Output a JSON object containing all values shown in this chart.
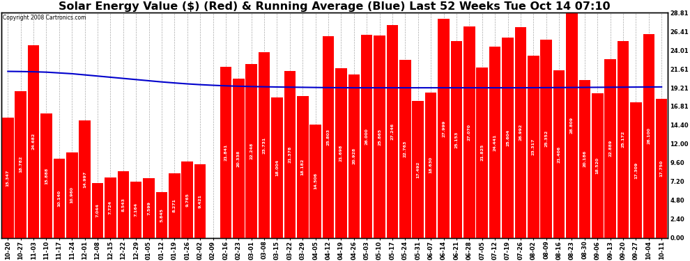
{
  "title": "Solar Energy Value ($) (Red) & Running Average (Blue) Last 52 Weeks Tue Oct 14 07:10",
  "copyright": "Copyright 2008 Cartronics.com",
  "ylabel_right_values": [
    28.81,
    26.41,
    24.01,
    21.61,
    19.21,
    16.81,
    14.4,
    12.0,
    9.6,
    7.2,
    4.8,
    2.4,
    0.0
  ],
  "bar_color": "#ff0000",
  "line_color": "#0000cc",
  "background_color": "#ffffff",
  "grid_color": "#aaaaaa",
  "x_labels": [
    "10-20",
    "10-27",
    "11-03",
    "11-10",
    "11-17",
    "11-24",
    "12-01",
    "12-08",
    "12-15",
    "12-22",
    "12-29",
    "01-05",
    "01-12",
    "01-19",
    "01-26",
    "02-02",
    "02-09",
    "02-16",
    "02-23",
    "03-01",
    "03-08",
    "03-15",
    "03-22",
    "03-29",
    "04-05",
    "04-12",
    "04-19",
    "04-26",
    "05-03",
    "05-10",
    "05-17",
    "05-24",
    "05-31",
    "06-07",
    "06-14",
    "06-21",
    "06-28",
    "07-05",
    "07-12",
    "07-19",
    "07-26",
    "08-02",
    "08-09",
    "08-16",
    "08-23",
    "08-30",
    "09-06",
    "09-13",
    "09-20",
    "09-27",
    "10-04",
    "10-11"
  ],
  "bar_values": [
    15.347,
    18.782,
    24.682,
    15.888,
    10.14,
    10.96,
    14.997,
    7.044,
    7.724,
    8.543,
    7.164,
    7.599,
    5.845,
    8.271,
    9.765,
    9.421,
    0.0,
    21.841,
    20.338,
    22.248,
    23.731,
    18.004,
    21.378,
    18.182,
    14.506,
    25.803,
    21.698,
    20.928,
    26.0,
    25.865,
    27.246,
    22.763,
    17.492,
    18.63,
    27.999,
    25.153,
    27.07,
    21.825,
    24.441,
    25.604,
    26.992,
    23.317,
    25.352,
    21.406,
    28.809,
    20.186,
    18.52,
    22.889,
    25.172,
    17.309,
    26.1,
    17.75
  ],
  "running_avg_y": [
    21.3,
    21.28,
    21.25,
    21.2,
    21.1,
    21.0,
    20.85,
    20.7,
    20.55,
    20.4,
    20.25,
    20.1,
    19.95,
    19.82,
    19.7,
    19.6,
    19.52,
    19.45,
    19.4,
    19.36,
    19.33,
    19.3,
    19.28,
    19.26,
    19.24,
    19.22,
    19.21,
    19.2,
    19.2,
    19.2,
    19.2,
    19.2,
    19.2,
    19.2,
    19.2,
    19.2,
    19.2,
    19.2,
    19.2,
    19.2,
    19.2,
    19.21,
    19.22,
    19.23,
    19.24,
    19.25,
    19.26,
    19.27,
    19.28,
    19.29,
    19.3,
    19.31
  ],
  "ymax": 28.81,
  "ymin": 0.0,
  "title_fontsize": 11.5,
  "tick_fontsize": 6.0,
  "label_fontsize": 4.5
}
